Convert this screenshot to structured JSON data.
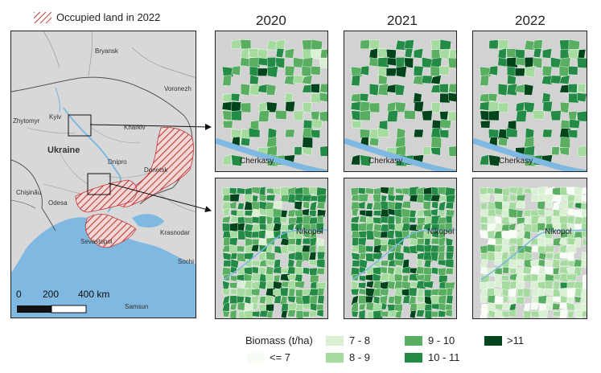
{
  "legend_top": {
    "hatch_label": "Occupied land in 2022"
  },
  "years": [
    "2020",
    "2021",
    "2022"
  ],
  "overview_map": {
    "cities": [
      "Bryansk",
      "Voronezh",
      "Kyiv",
      "Zhytomyr",
      "Kharkiv",
      "Ukraine",
      "Dnipro",
      "Donetsk",
      "Chișinău",
      "Odesa",
      "Krasnodar",
      "Sevastopol",
      "Sochi",
      "Samsun"
    ],
    "scale_labels": [
      "0",
      "200",
      "400 km"
    ]
  },
  "panel_labels": {
    "top": "Cherkasy",
    "bottom": "Nikopol"
  },
  "legend": {
    "title": "Biomass (t/ha)",
    "classes": [
      {
        "label": "<= 7",
        "color": "#f7fcf5"
      },
      {
        "label": "7 - 8",
        "color": "#d9f0d3"
      },
      {
        "label": "8 - 9",
        "color": "#a6dba0"
      },
      {
        "label": "9 - 10",
        "color": "#5aae61"
      },
      {
        "label": "10 - 11",
        "color": "#238b45"
      },
      {
        "label": ">11",
        "color": "#00441b"
      }
    ]
  },
  "colors": {
    "land": "#d2d2d2",
    "water": "#7fb8e0",
    "hatch": "#c0393b"
  }
}
